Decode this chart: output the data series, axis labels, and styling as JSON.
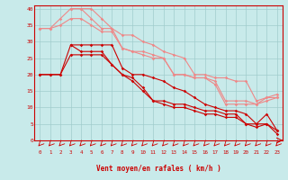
{
  "background_color": "#c8eaea",
  "grid_color": "#a0cccc",
  "line_color_dark": "#cc0000",
  "line_color_light": "#ee8888",
  "xlabel": "Vent moyen/en rafales ( km/h )",
  "xlim": [
    -0.5,
    23.5
  ],
  "ylim": [
    0,
    41
  ],
  "yticks": [
    0,
    5,
    10,
    15,
    20,
    25,
    30,
    35,
    40
  ],
  "xticks": [
    0,
    1,
    2,
    3,
    4,
    5,
    6,
    7,
    8,
    9,
    10,
    11,
    12,
    13,
    14,
    15,
    16,
    17,
    18,
    19,
    20,
    21,
    22,
    23
  ],
  "lines_dark": [
    {
      "x": [
        0,
        1,
        2,
        3,
        4,
        5,
        6,
        7,
        8,
        9,
        10,
        11,
        12,
        13,
        14,
        15,
        16,
        17,
        18,
        19,
        20,
        21,
        22,
        23
      ],
      "y": [
        20,
        20,
        20,
        29,
        27,
        27,
        27,
        23,
        20,
        19,
        16,
        12,
        12,
        11,
        11,
        10,
        9,
        9,
        8,
        8,
        5,
        5,
        8,
        3
      ]
    },
    {
      "x": [
        0,
        1,
        2,
        3,
        4,
        5,
        6,
        7,
        8,
        9,
        10,
        11,
        12,
        13,
        14,
        15,
        16,
        17,
        18,
        19,
        20,
        21,
        22,
        23
      ],
      "y": [
        20,
        20,
        20,
        26,
        26,
        26,
        26,
        23,
        20,
        18,
        15,
        12,
        11,
        10,
        10,
        9,
        8,
        8,
        7,
        7,
        5,
        4,
        5,
        2
      ]
    },
    {
      "x": [
        3,
        4,
        5,
        6,
        7,
        8,
        9,
        10,
        11,
        12,
        13,
        14,
        15,
        16,
        17,
        18,
        19,
        20,
        21,
        22,
        23
      ],
      "y": [
        29,
        29,
        29,
        29,
        29,
        22,
        20,
        20,
        19,
        18,
        16,
        15,
        13,
        11,
        10,
        9,
        9,
        8,
        5,
        5,
        3
      ]
    }
  ],
  "lines_light": [
    {
      "x": [
        0,
        1,
        2,
        3,
        4,
        5,
        6,
        7,
        8,
        9,
        10,
        11,
        12,
        13,
        14,
        15,
        16,
        17,
        18,
        19,
        20,
        21,
        22,
        23
      ],
      "y": [
        34,
        34,
        37,
        40,
        40,
        37,
        34,
        34,
        28,
        27,
        27,
        26,
        25,
        20,
        20,
        19,
        19,
        18,
        12,
        12,
        12,
        11,
        13,
        13
      ]
    },
    {
      "x": [
        0,
        1,
        2,
        3,
        4,
        5,
        6,
        7,
        8,
        9,
        10,
        11,
        12,
        13,
        14,
        15,
        16,
        17,
        18,
        19,
        20,
        21,
        22,
        23
      ],
      "y": [
        34,
        34,
        35,
        37,
        37,
        35,
        33,
        33,
        28,
        27,
        26,
        25,
        25,
        20,
        20,
        19,
        19,
        17,
        11,
        11,
        11,
        11,
        12,
        13
      ]
    },
    {
      "x": [
        3,
        4,
        5,
        6,
        7,
        8,
        9,
        10,
        11,
        12,
        13,
        14,
        15,
        16,
        17,
        18,
        19,
        20,
        21,
        22,
        23
      ],
      "y": [
        40,
        40,
        40,
        37,
        34,
        32,
        32,
        30,
        29,
        27,
        26,
        25,
        20,
        20,
        19,
        19,
        18,
        18,
        12,
        13,
        14
      ]
    }
  ]
}
